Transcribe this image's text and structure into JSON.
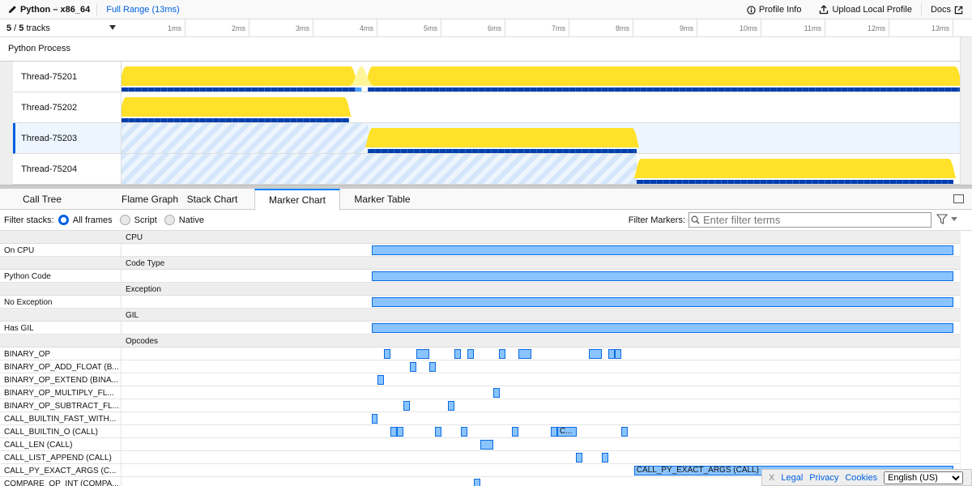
{
  "topbar": {
    "title": "Python – x86_64",
    "range": "Full Range (13ms)",
    "profile_info": "Profile Info",
    "upload": "Upload Local Profile",
    "docs": "Docs"
  },
  "timeline": {
    "tracks_visible": "5",
    "tracks_total": "5",
    "tracks_word": "tracks",
    "ticks": [
      "1ms",
      "2ms",
      "3ms",
      "4ms",
      "5ms",
      "6ms",
      "7ms",
      "8ms",
      "9ms",
      "10ms",
      "11ms",
      "12ms",
      "13ms"
    ],
    "process": "Python Process"
  },
  "tracks": [
    {
      "name": "Thread-75201",
      "active": [
        [
          0,
          3.65
        ],
        [
          3.85,
          13.1
        ]
      ],
      "selected": false,
      "idle_before": null
    },
    {
      "name": "Thread-75202",
      "active": [
        [
          0,
          3.55
        ]
      ],
      "selected": false,
      "idle_before": null
    },
    {
      "name": "Thread-75203",
      "active": [
        [
          3.85,
          8.05
        ]
      ],
      "selected": true,
      "idle_before": 3.85
    },
    {
      "name": "Thread-75204",
      "active": [
        [
          8.05,
          13.0
        ]
      ],
      "selected": false,
      "idle_before": 8.05
    }
  ],
  "tabs": [
    {
      "label": "Call Tree"
    },
    {
      "label": "Flame Graph"
    },
    {
      "label": "Stack Chart"
    },
    {
      "label": "Marker Chart",
      "selected": true
    },
    {
      "label": "Marker Table"
    }
  ],
  "filter": {
    "label": "Filter stacks:",
    "options": [
      "All frames",
      "Script",
      "Native"
    ],
    "selected": "All frames",
    "markers_label": "Filter Markers:",
    "placeholder": "Enter filter terms"
  },
  "marker_chart": {
    "rows": [
      {
        "header": "CPU"
      },
      {
        "label": "On CPU",
        "markers": [
          [
            3.91,
            13.0
          ]
        ]
      },
      {
        "header": "Code Type"
      },
      {
        "label": "Python Code",
        "markers": [
          [
            3.91,
            13.0
          ]
        ]
      },
      {
        "header": "Exception"
      },
      {
        "label": "No Exception",
        "markers": [
          [
            3.91,
            13.0
          ]
        ]
      },
      {
        "header": "GIL"
      },
      {
        "label": "Has GIL",
        "markers": [
          [
            3.91,
            13.0
          ]
        ]
      },
      {
        "header": "Opcodes"
      },
      {
        "label": "BINARY_OP",
        "markers": [
          [
            4.1,
            4.2
          ],
          [
            4.61,
            4.81
          ],
          [
            5.2,
            5.3
          ],
          [
            5.41,
            5.51
          ],
          [
            5.9,
            6.0
          ],
          [
            6.2,
            6.41
          ],
          [
            7.3,
            7.51
          ],
          [
            7.61,
            7.71
          ],
          [
            7.71,
            7.81
          ]
        ]
      },
      {
        "label": "BINARY_OP_ADD_FLOAT (B...",
        "markers": [
          [
            4.51,
            4.61
          ],
          [
            4.81,
            4.91
          ]
        ]
      },
      {
        "label": "BINARY_OP_EXTEND (BINA...",
        "markers": [
          [
            4.0,
            4.1
          ]
        ]
      },
      {
        "label": "BINARY_OP_MULTIPLY_FL...",
        "markers": [
          [
            5.81,
            5.91
          ]
        ]
      },
      {
        "label": "BINARY_OP_SUBTRACT_FL...",
        "markers": [
          [
            4.41,
            4.51
          ],
          [
            5.1,
            5.2
          ]
        ]
      },
      {
        "label": "CALL_BUILTIN_FAST_WITH...",
        "markers": [
          [
            3.91,
            4.0
          ]
        ]
      },
      {
        "label": "CALL_BUILTIN_O (CALL)",
        "markers": [
          [
            4.2,
            4.3
          ],
          [
            4.3,
            4.41
          ],
          [
            4.9,
            5.0
          ],
          [
            5.3,
            5.41
          ],
          [
            6.1,
            6.2
          ],
          [
            6.71,
            6.81
          ],
          [
            6.81,
            7.11,
            "C..."
          ],
          [
            7.81,
            7.91
          ]
        ]
      },
      {
        "label": "CALL_LEN (CALL)",
        "markers": [
          [
            5.61,
            5.81
          ]
        ]
      },
      {
        "label": "CALL_LIST_APPEND (CALL)",
        "markers": [
          [
            7.1,
            7.2
          ],
          [
            7.51,
            7.61
          ]
        ]
      },
      {
        "label": "CALL_PY_EXACT_ARGS (C...",
        "markers": [
          [
            8.01,
            13.0,
            "CALL_PY_EXACT_ARGS (CALL)"
          ]
        ]
      },
      {
        "label": "COMPARE_OP_INT (COMPA...",
        "markers": [
          [
            5.51,
            5.61
          ]
        ]
      }
    ]
  },
  "footer": {
    "close": "X",
    "legal": "Legal",
    "privacy": "Privacy",
    "cookies": "Cookies",
    "language": "English (US)"
  },
  "colors": {
    "accent": "#0060df",
    "cpu_graph": "#ffe129",
    "samples": "#003eaa",
    "marker": "#8ac4ff"
  }
}
